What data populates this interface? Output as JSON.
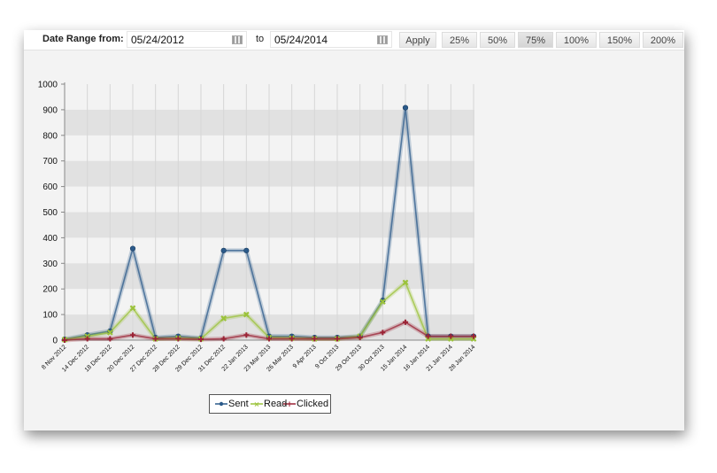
{
  "toolbar": {
    "date_range_label": "Date Range from:",
    "from_date": "05/24/2012",
    "to_label": "to",
    "to_date": "05/24/2014",
    "apply_label": "Apply",
    "zoom_options": [
      "25%",
      "50%",
      "75%",
      "100%",
      "150%",
      "200%"
    ],
    "selected_zoom": "75%",
    "calendar_icon": "calendar-icon"
  },
  "colors": {
    "sent": "#2b5a8a",
    "read": "#9bc23a",
    "clicked": "#9b2335",
    "band": "#e1e1e1",
    "plot_bg": "#f3f3f3"
  },
  "chart_data": {
    "type": "line",
    "categories": [
      "8 Nov 2012",
      "14 Dec 2012",
      "18 Dec 2012",
      "20 Dec 2012",
      "27 Dec 2012",
      "28 Dec 2012",
      "29 Dec 2012",
      "31 Dec 2012",
      "22 Jan 2013",
      "23 Mar 2013",
      "26 Mar 2013",
      "9 Apr 2013",
      "9 Oct 2013",
      "29 Oct 2013",
      "30 Oct 2013",
      "15 Jan 2014",
      "16 Jan 2014",
      "21 Jan 2014",
      "28 Jan 2014"
    ],
    "series": [
      {
        "name": "Sent",
        "values": [
          3,
          20,
          35,
          358,
          10,
          15,
          8,
          350,
          350,
          15,
          15,
          10,
          10,
          15,
          155,
          908,
          15,
          15,
          15
        ]
      },
      {
        "name": "Read",
        "values": [
          2,
          15,
          30,
          125,
          5,
          8,
          5,
          85,
          100,
          10,
          8,
          5,
          5,
          15,
          150,
          225,
          5,
          5,
          5
        ]
      },
      {
        "name": "Clicked",
        "values": [
          0,
          5,
          5,
          20,
          5,
          5,
          3,
          5,
          20,
          5,
          5,
          5,
          5,
          10,
          30,
          70,
          15,
          15,
          15
        ]
      }
    ],
    "ylim": [
      0,
      1000
    ],
    "yticks": [
      0,
      100,
      200,
      300,
      400,
      500,
      600,
      700,
      800,
      900,
      1000
    ],
    "legend_position": "bottom-left",
    "grid": true
  }
}
